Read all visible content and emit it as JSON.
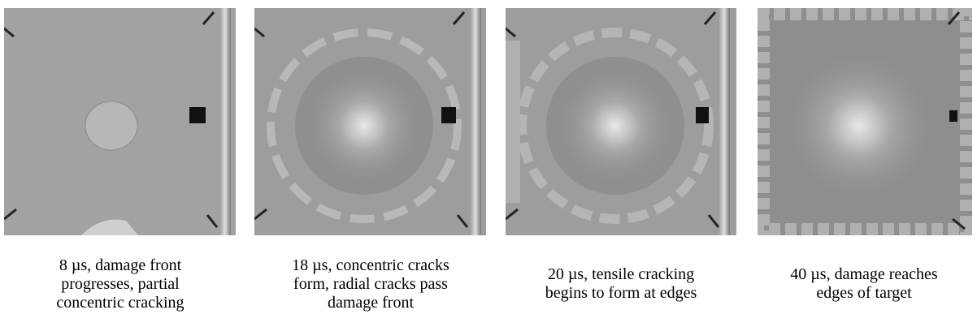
{
  "figure": {
    "panels": [
      {
        "caption_lines": [
          "8 µs, damage front",
          "progresses, partial",
          "concentric cracking"
        ]
      },
      {
        "caption_lines": [
          "18 µs, concentric cracks",
          "form, radial cracks pass",
          "damage front"
        ]
      },
      {
        "caption_lines": [
          "20 µs, tensile cracking",
          "begins to form at edges"
        ]
      },
      {
        "caption_lines": [
          "40 µs, damage reaches",
          "edges of target"
        ]
      }
    ]
  }
}
